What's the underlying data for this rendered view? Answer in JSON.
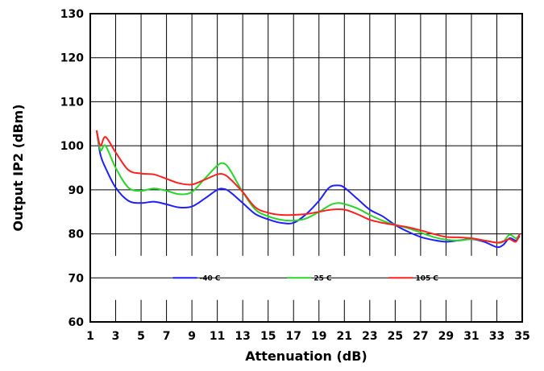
{
  "chart_data": {
    "type": "line",
    "title": "",
    "xlabel": "Attenuation (dB)",
    "ylabel": "Output IP2 (dBm)",
    "xlim": [
      1,
      35
    ],
    "ylim": [
      60,
      130
    ],
    "xticks": [
      1,
      3,
      5,
      7,
      9,
      11,
      13,
      15,
      17,
      19,
      21,
      23,
      25,
      27,
      29,
      31,
      33,
      35
    ],
    "yticks": [
      60,
      70,
      80,
      90,
      100,
      110,
      120,
      130
    ],
    "grid": true,
    "legend_position": "inside-bottom",
    "series": [
      {
        "name": "-40 C",
        "color": "#1f1fff",
        "x": [
          1.5,
          1.8,
          2.2,
          3,
          4,
          5,
          6,
          7,
          8,
          9,
          10,
          11,
          11.5,
          12,
          13,
          14,
          15,
          16,
          17,
          18,
          19,
          19.8,
          20.5,
          21,
          22,
          23,
          24,
          25,
          26,
          27,
          28,
          29,
          30,
          31,
          32,
          33,
          33.5,
          34,
          34.5,
          34.8
        ],
        "y": [
          103.5,
          98,
          95,
          90.5,
          87.5,
          87,
          87.3,
          86.7,
          86,
          86.2,
          88,
          90,
          90.2,
          89.5,
          87,
          84.5,
          83.3,
          82.5,
          82.5,
          84.5,
          87.5,
          90.5,
          91,
          90.5,
          88,
          85.5,
          84,
          82,
          80.5,
          79.3,
          78.6,
          78.2,
          78.5,
          78.8,
          78.2,
          77,
          77.5,
          79,
          78.5,
          79.5
        ]
      },
      {
        "name": "25 C",
        "color": "#2ad42a",
        "x": [
          1.5,
          1.8,
          2.2,
          3,
          4,
          5,
          6,
          7,
          8,
          9,
          10,
          11,
          11.5,
          12,
          13,
          14,
          15,
          16,
          17,
          18,
          19,
          20,
          20.5,
          21,
          22,
          23,
          24,
          25,
          26,
          27,
          28,
          29,
          30,
          31,
          32,
          33,
          33.5,
          34,
          34.5,
          34.8
        ],
        "y": [
          103.5,
          99,
          100,
          95,
          90.5,
          89.8,
          90.3,
          89.8,
          89,
          89.5,
          92.5,
          95.5,
          96,
          94.5,
          89.5,
          85.5,
          84,
          83.2,
          83,
          83.5,
          85,
          86.7,
          87,
          86.8,
          85.8,
          84.3,
          83,
          82,
          81.3,
          80.3,
          79.3,
          78.7,
          78.5,
          78.8,
          78.5,
          78,
          78.2,
          79.8,
          79,
          80
        ]
      },
      {
        "name": "105 C",
        "color": "#ff2020",
        "x": [
          1.5,
          1.8,
          2.2,
          3,
          4,
          5,
          6,
          7,
          8,
          9,
          10,
          11,
          11.5,
          12,
          13,
          14,
          15,
          16,
          17,
          18,
          19,
          20,
          21,
          22,
          23,
          24,
          25,
          26,
          27,
          28,
          29,
          30,
          31,
          32,
          33,
          33.5,
          34,
          34.5,
          34.8
        ],
        "y": [
          103.5,
          100,
          102,
          98.5,
          94.5,
          93.7,
          93.5,
          92.5,
          91.5,
          91.2,
          92.3,
          93.5,
          93.5,
          92.5,
          89.5,
          86,
          84.8,
          84.3,
          84.3,
          84.5,
          85,
          85.5,
          85.5,
          84.5,
          83.2,
          82.5,
          82,
          81.5,
          80.8,
          80,
          79.3,
          79.2,
          79,
          78.5,
          78,
          78.3,
          78.8,
          78.2,
          80
        ]
      }
    ]
  }
}
